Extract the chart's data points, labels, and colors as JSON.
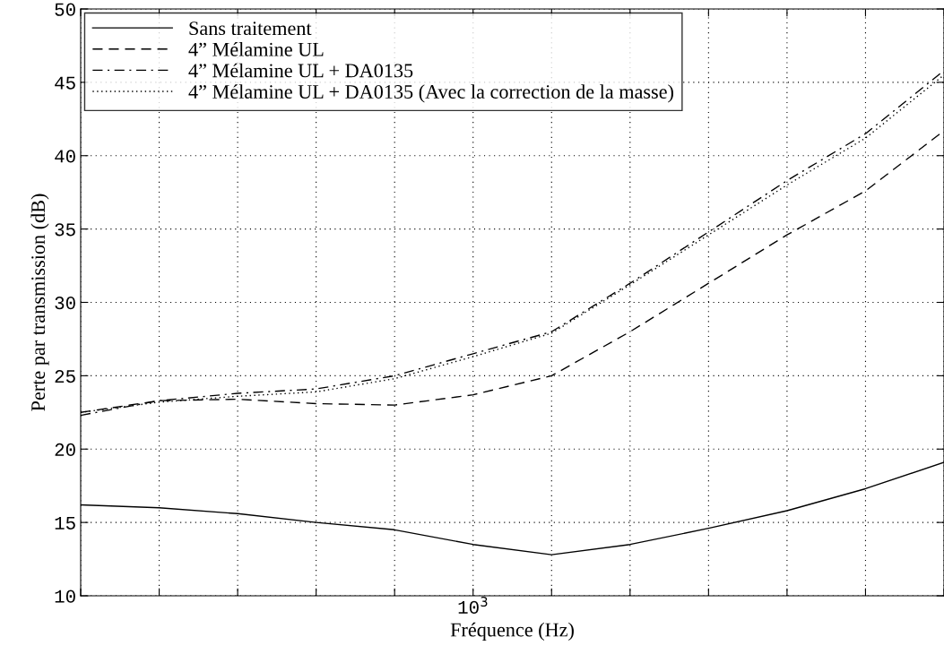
{
  "chart_data": {
    "type": "line",
    "xlabel": "Fréquence (Hz)",
    "ylabel": "Perte par transmission (dB)",
    "categories": [
      null,
      null,
      null,
      null,
      null,
      "10$^{3}$",
      null,
      null,
      null,
      null,
      null,
      null
    ],
    "ylim": [
      10,
      50
    ],
    "yticks": [
      {
        "value": 10,
        "label": "10"
      },
      {
        "value": 15,
        "label": "15"
      },
      {
        "value": 20,
        "label": "20"
      },
      {
        "value": 25,
        "label": "25"
      },
      {
        "value": 30,
        "label": "30"
      },
      {
        "value": 35,
        "label": "35"
      },
      {
        "value": 40,
        "label": "40"
      },
      {
        "value": 45,
        "label": "45"
      },
      {
        "value": 50,
        "label": "50"
      }
    ],
    "grid": true,
    "legend": "top left",
    "marker": "none",
    "series": [
      {
        "name": "Sans traitement",
        "color": "#000000",
        "line_style": "solid",
        "values": [
          16.2,
          16.0,
          15.6,
          15.0,
          14.5,
          13.5,
          12.8,
          13.5,
          14.6,
          15.8,
          17.3,
          19.1
        ]
      },
      {
        "name": "4” Mélamine UL",
        "color": "#000000",
        "line_style": "dashed",
        "values": [
          22.5,
          23.3,
          23.4,
          23.1,
          23.0,
          23.7,
          25.0,
          28.0,
          31.3,
          34.6,
          37.6,
          41.7
        ]
      },
      {
        "name": "4” Mélamine UL + DA0135",
        "color": "#000000",
        "line_style": "dashdot",
        "values": [
          22.3,
          23.3,
          23.8,
          24.1,
          25.0,
          26.5,
          28.0,
          31.3,
          34.8,
          38.3,
          41.5,
          45.8
        ]
      },
      {
        "name": "4” Mélamine UL + DA0135 (Avec la correction de la masse)",
        "color": "#000000",
        "line_style": "dotted",
        "values": [
          22.5,
          23.2,
          23.6,
          23.9,
          24.8,
          26.3,
          27.9,
          31.2,
          34.6,
          38.0,
          41.2,
          45.5
        ]
      }
    ]
  }
}
